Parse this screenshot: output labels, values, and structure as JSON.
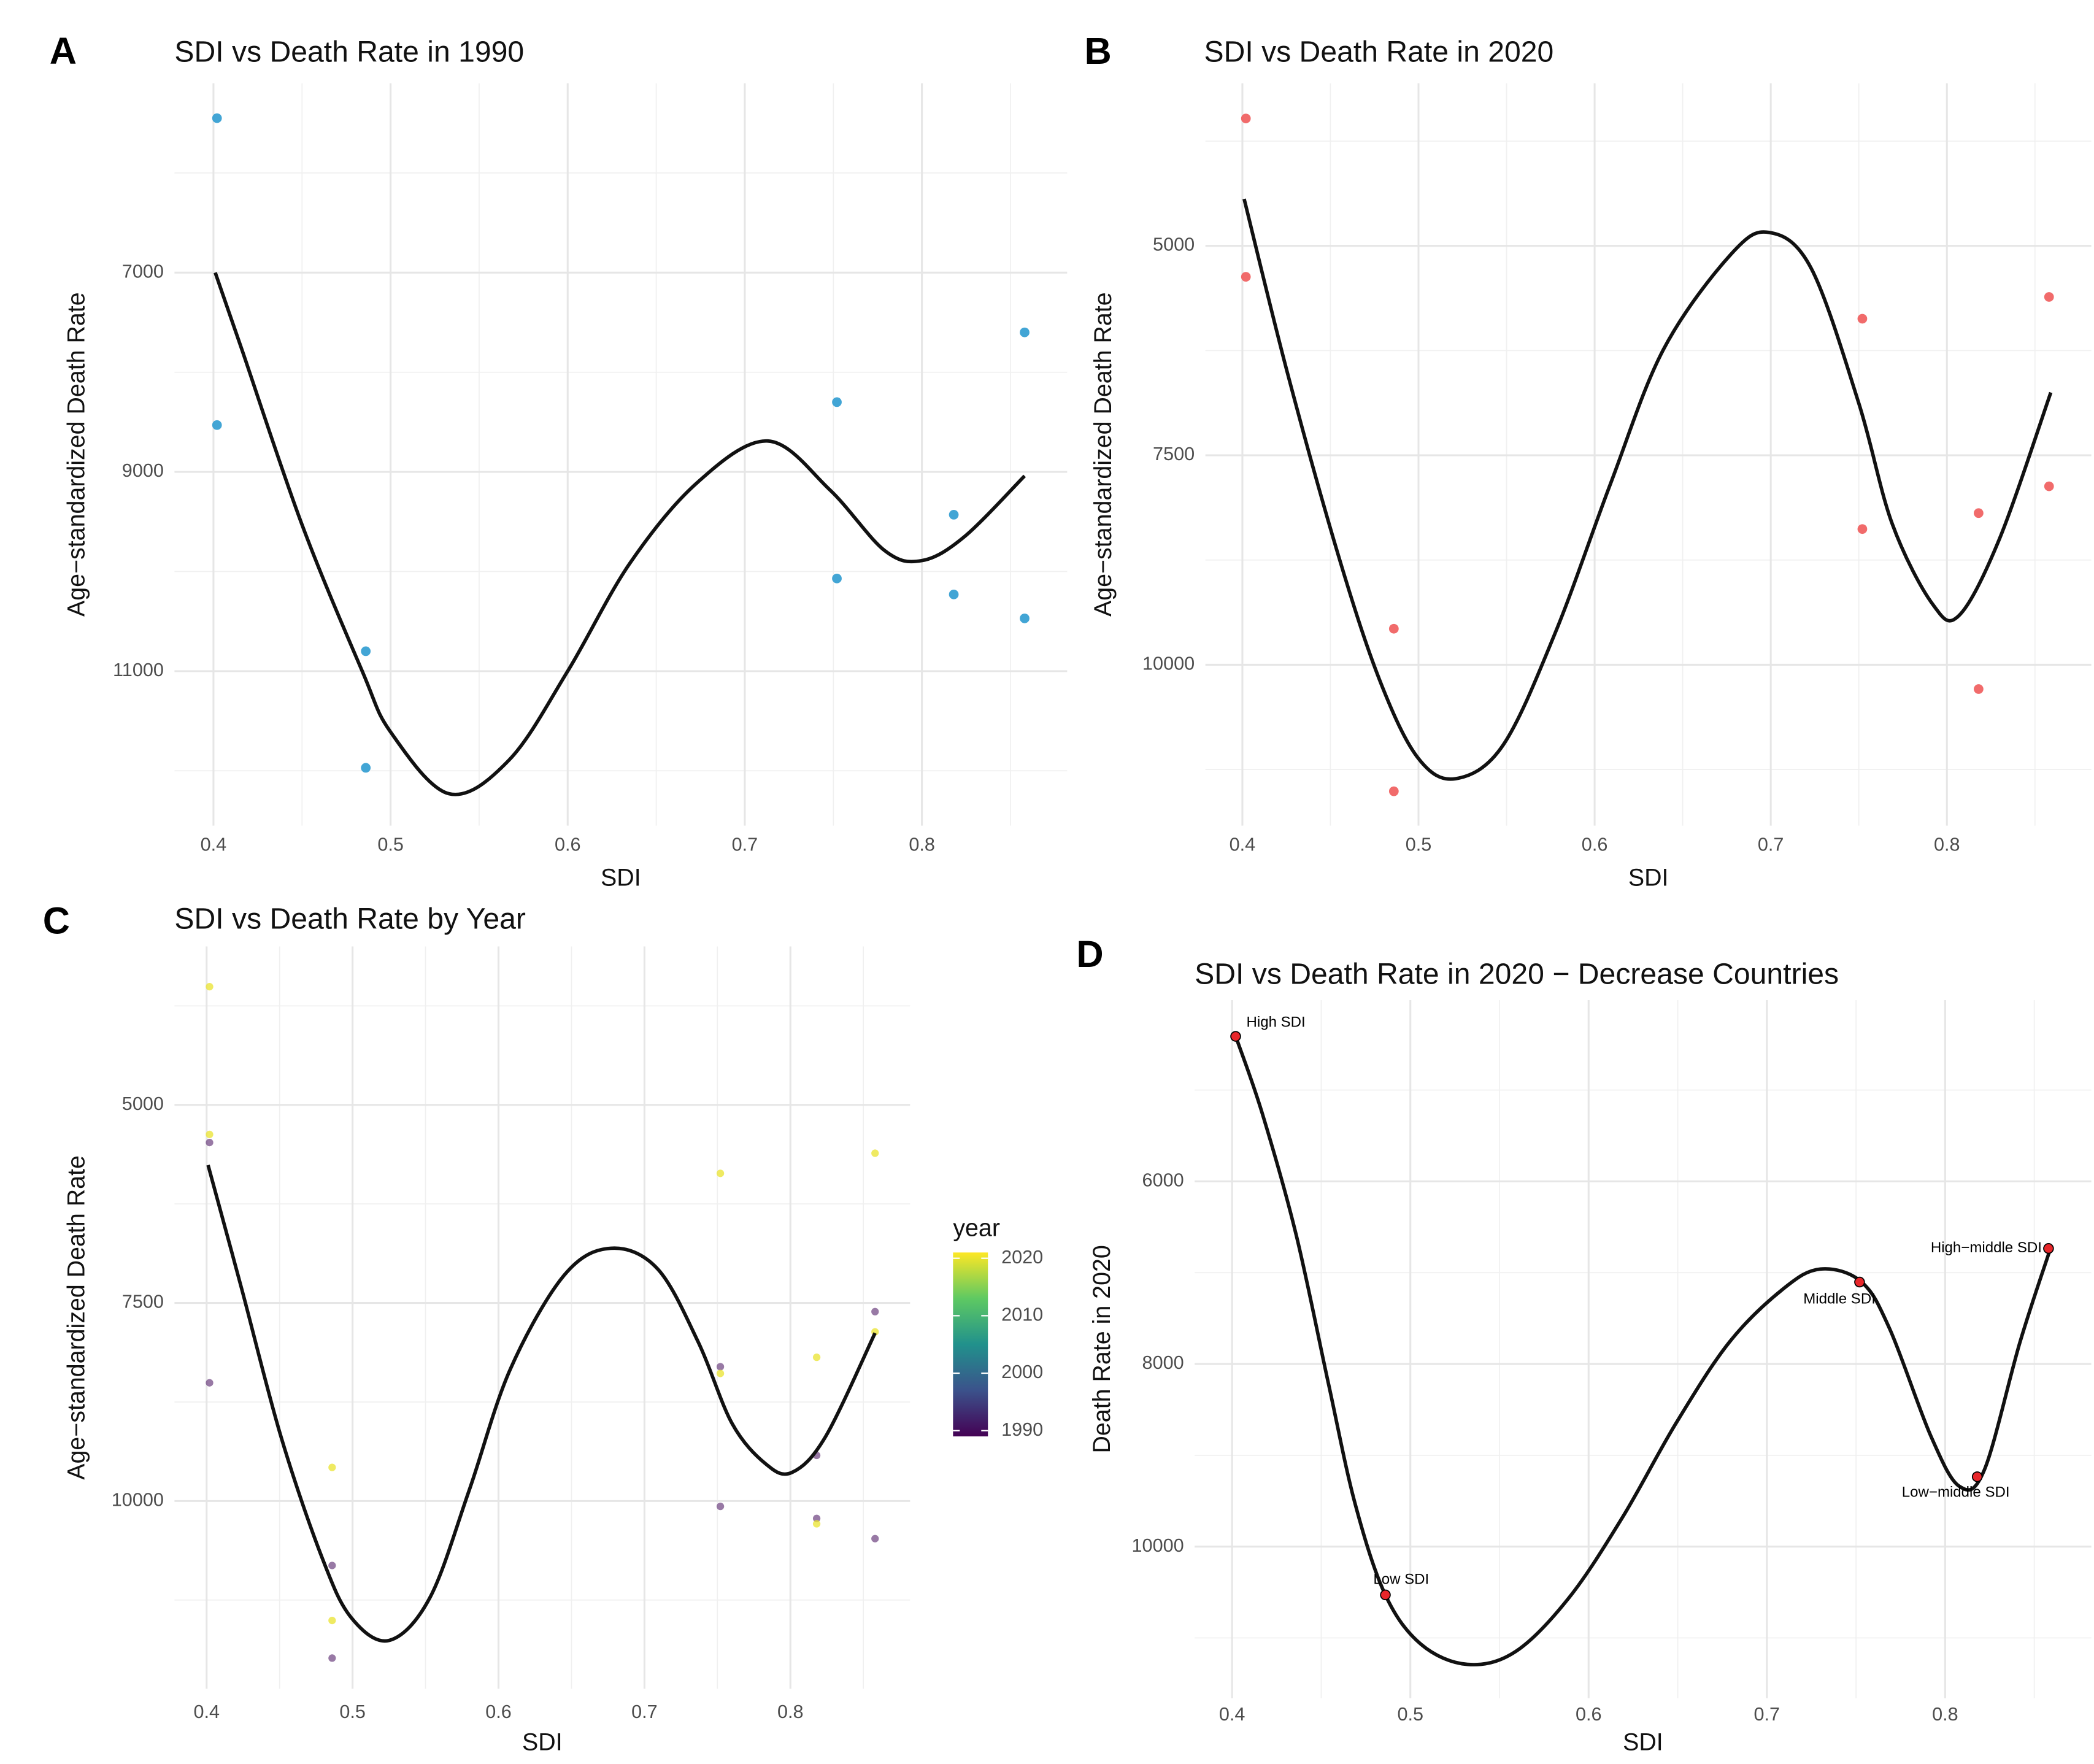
{
  "chart_data": [
    {
      "type": "scatter",
      "panel": "A",
      "title": "SDI vs Death Rate in 1990",
      "x_label": "SDI",
      "y_label": "Age−standardized Death Rate",
      "xlim": [
        0.378,
        0.882
      ],
      "ylim": [
        5100,
        12550
      ],
      "y_reversed": true,
      "grid": true,
      "xticks": [
        0.4,
        0.5,
        0.6,
        0.7,
        0.8
      ],
      "minor_xticks": [
        0.45,
        0.55,
        0.65,
        0.75,
        0.85
      ],
      "yticks": [
        7000,
        9000,
        11000
      ],
      "minor_yticks": [
        6000,
        8000,
        10000,
        12000
      ],
      "points": {
        "color": "#2e9bd0",
        "x": [
          0.402,
          0.402,
          0.486,
          0.486,
          0.752,
          0.752,
          0.818,
          0.818,
          0.858,
          0.858
        ],
        "values": [
          5450,
          8530,
          10800,
          11970,
          8300,
          10070,
          9430,
          10230,
          7600,
          10470
        ]
      },
      "curve": {
        "color": "#111111",
        "x": [
          0.401,
          0.416,
          0.45,
          0.484,
          0.5,
          0.533,
          0.567,
          0.6,
          0.635,
          0.673,
          0.713,
          0.748,
          0.779,
          0.8,
          0.824,
          0.858
        ],
        "values": [
          7000,
          7770,
          9530,
          11000,
          11610,
          12230,
          11890,
          11000,
          9920,
          9110,
          8690,
          9180,
          9790,
          9890,
          9650,
          9040
        ]
      }
    },
    {
      "type": "scatter",
      "panel": "B",
      "title": "SDI vs Death Rate in 2020",
      "x_label": "SDI",
      "y_label": "Age−standardized Death Rate",
      "xlim": [
        0.379,
        0.882
      ],
      "ylim": [
        3060,
        11920
      ],
      "y_reversed": true,
      "grid": true,
      "xticks": [
        0.4,
        0.5,
        0.6,
        0.7,
        0.8
      ],
      "minor_xticks": [
        0.45,
        0.55,
        0.65,
        0.75,
        0.85
      ],
      "yticks": [
        5000,
        7500,
        10000
      ],
      "minor_yticks": [
        3750,
        6250,
        8750,
        11250
      ],
      "points": {
        "color": "#ef5b5b",
        "x": [
          0.402,
          0.402,
          0.486,
          0.486,
          0.752,
          0.752,
          0.818,
          0.818,
          0.858,
          0.858
        ],
        "values": [
          3480,
          5370,
          9570,
          11510,
          5870,
          8380,
          8190,
          10290,
          5610,
          7870
        ]
      },
      "curve": {
        "color": "#111111",
        "x": [
          0.401,
          0.426,
          0.456,
          0.479,
          0.5,
          0.521,
          0.548,
          0.578,
          0.609,
          0.639,
          0.677,
          0.699,
          0.723,
          0.75,
          0.769,
          0.792,
          0.807,
          0.83,
          0.859
        ],
        "values": [
          4440,
          6550,
          8800,
          10240,
          11120,
          11360,
          10960,
          9600,
          7840,
          6240,
          5110,
          4840,
          5270,
          6880,
          8320,
          9280,
          9410,
          8490,
          6750
        ]
      }
    },
    {
      "type": "scatter",
      "panel": "C",
      "title": "SDI vs Death Rate by Year",
      "x_label": "SDI",
      "y_label": "Age−standardized Death Rate",
      "xlim": [
        0.378,
        0.882
      ],
      "ylim": [
        3000,
        12370
      ],
      "y_reversed": true,
      "grid": true,
      "xticks": [
        0.4,
        0.5,
        0.6,
        0.7,
        0.8
      ],
      "minor_xticks": [
        0.45,
        0.55,
        0.65,
        0.75,
        0.85
      ],
      "yticks": [
        5000,
        7500,
        10000
      ],
      "minor_yticks": [
        3750,
        6250,
        8750,
        11250
      ],
      "series": [
        {
          "year": 1990,
          "x": [
            0.402,
            0.402,
            0.486,
            0.486,
            0.752,
            0.752,
            0.818,
            0.818,
            0.858,
            0.858
          ],
          "values": [
            5475,
            8508,
            10814,
            11983,
            8305,
            10068,
            9424,
            10220,
            7610,
            10475
          ]
        },
        {
          "year": 2020,
          "x": [
            0.402,
            0.402,
            0.486,
            0.486,
            0.752,
            0.752,
            0.818,
            0.818,
            0.858,
            0.858
          ],
          "values": [
            3508,
            5373,
            9576,
            11508,
            5864,
            8390,
            8186,
            10288,
            5610,
            7865
          ]
        }
      ],
      "colorbar": {
        "title": "year",
        "lim": [
          1989,
          2021
        ],
        "ticks": [
          1990,
          2000,
          2010,
          2020
        ],
        "colorscale": [
          "#440154",
          "#3b528b",
          "#21918c",
          "#5ec962",
          "#fde725"
        ]
      },
      "curve": {
        "color": "#111111",
        "x": [
          0.401,
          0.424,
          0.451,
          0.479,
          0.499,
          0.525,
          0.553,
          0.58,
          0.608,
          0.645,
          0.677,
          0.709,
          0.737,
          0.76,
          0.783,
          0.801,
          0.824,
          0.858
        ],
        "values": [
          5760,
          7320,
          9190,
          10710,
          11470,
          11760,
          11220,
          9860,
          8340,
          7150,
          6810,
          7070,
          8000,
          9020,
          9530,
          9640,
          9190,
          7880
        ]
      }
    },
    {
      "type": "scatter",
      "panel": "D",
      "title": "SDI vs Death Rate in 2020 − Decrease Countries",
      "x_label": "SDI",
      "y_label": "Death Rate in 2020",
      "xlim": [
        0.379,
        0.882
      ],
      "ylim": [
        4015,
        11660
      ],
      "y_reversed": true,
      "grid": true,
      "xticks": [
        0.4,
        0.5,
        0.6,
        0.7,
        0.8
      ],
      "minor_xticks": [
        0.45,
        0.55,
        0.65,
        0.75,
        0.85
      ],
      "yticks": [
        6000,
        8000,
        10000
      ],
      "minor_yticks": [
        5000,
        7000,
        9000,
        11000
      ],
      "points": {
        "color": "#e8262a",
        "x": [
          0.402,
          0.486,
          0.752,
          0.818,
          0.858
        ],
        "values": [
          4412,
          10529,
          7103,
          9235,
          6735
        ],
        "labels": [
          "High SDI",
          "Low SDI",
          "Middle SDI",
          "Low−middle SDI",
          "High−middle SDI"
        ]
      },
      "curve": {
        "color": "#111111",
        "x": [
          0.402,
          0.417,
          0.436,
          0.454,
          0.469,
          0.486,
          0.506,
          0.532,
          0.559,
          0.589,
          0.619,
          0.649,
          0.679,
          0.709,
          0.73,
          0.753,
          0.769,
          0.792,
          0.808,
          0.822,
          0.842,
          0.859
        ],
        "values": [
          4410,
          5260,
          6590,
          8210,
          9530,
          10530,
          11070,
          11290,
          11150,
          10560,
          9680,
          8650,
          7760,
          7180,
          6960,
          7100,
          7620,
          8790,
          9340,
          9160,
          7760,
          6740
        ]
      }
    }
  ]
}
